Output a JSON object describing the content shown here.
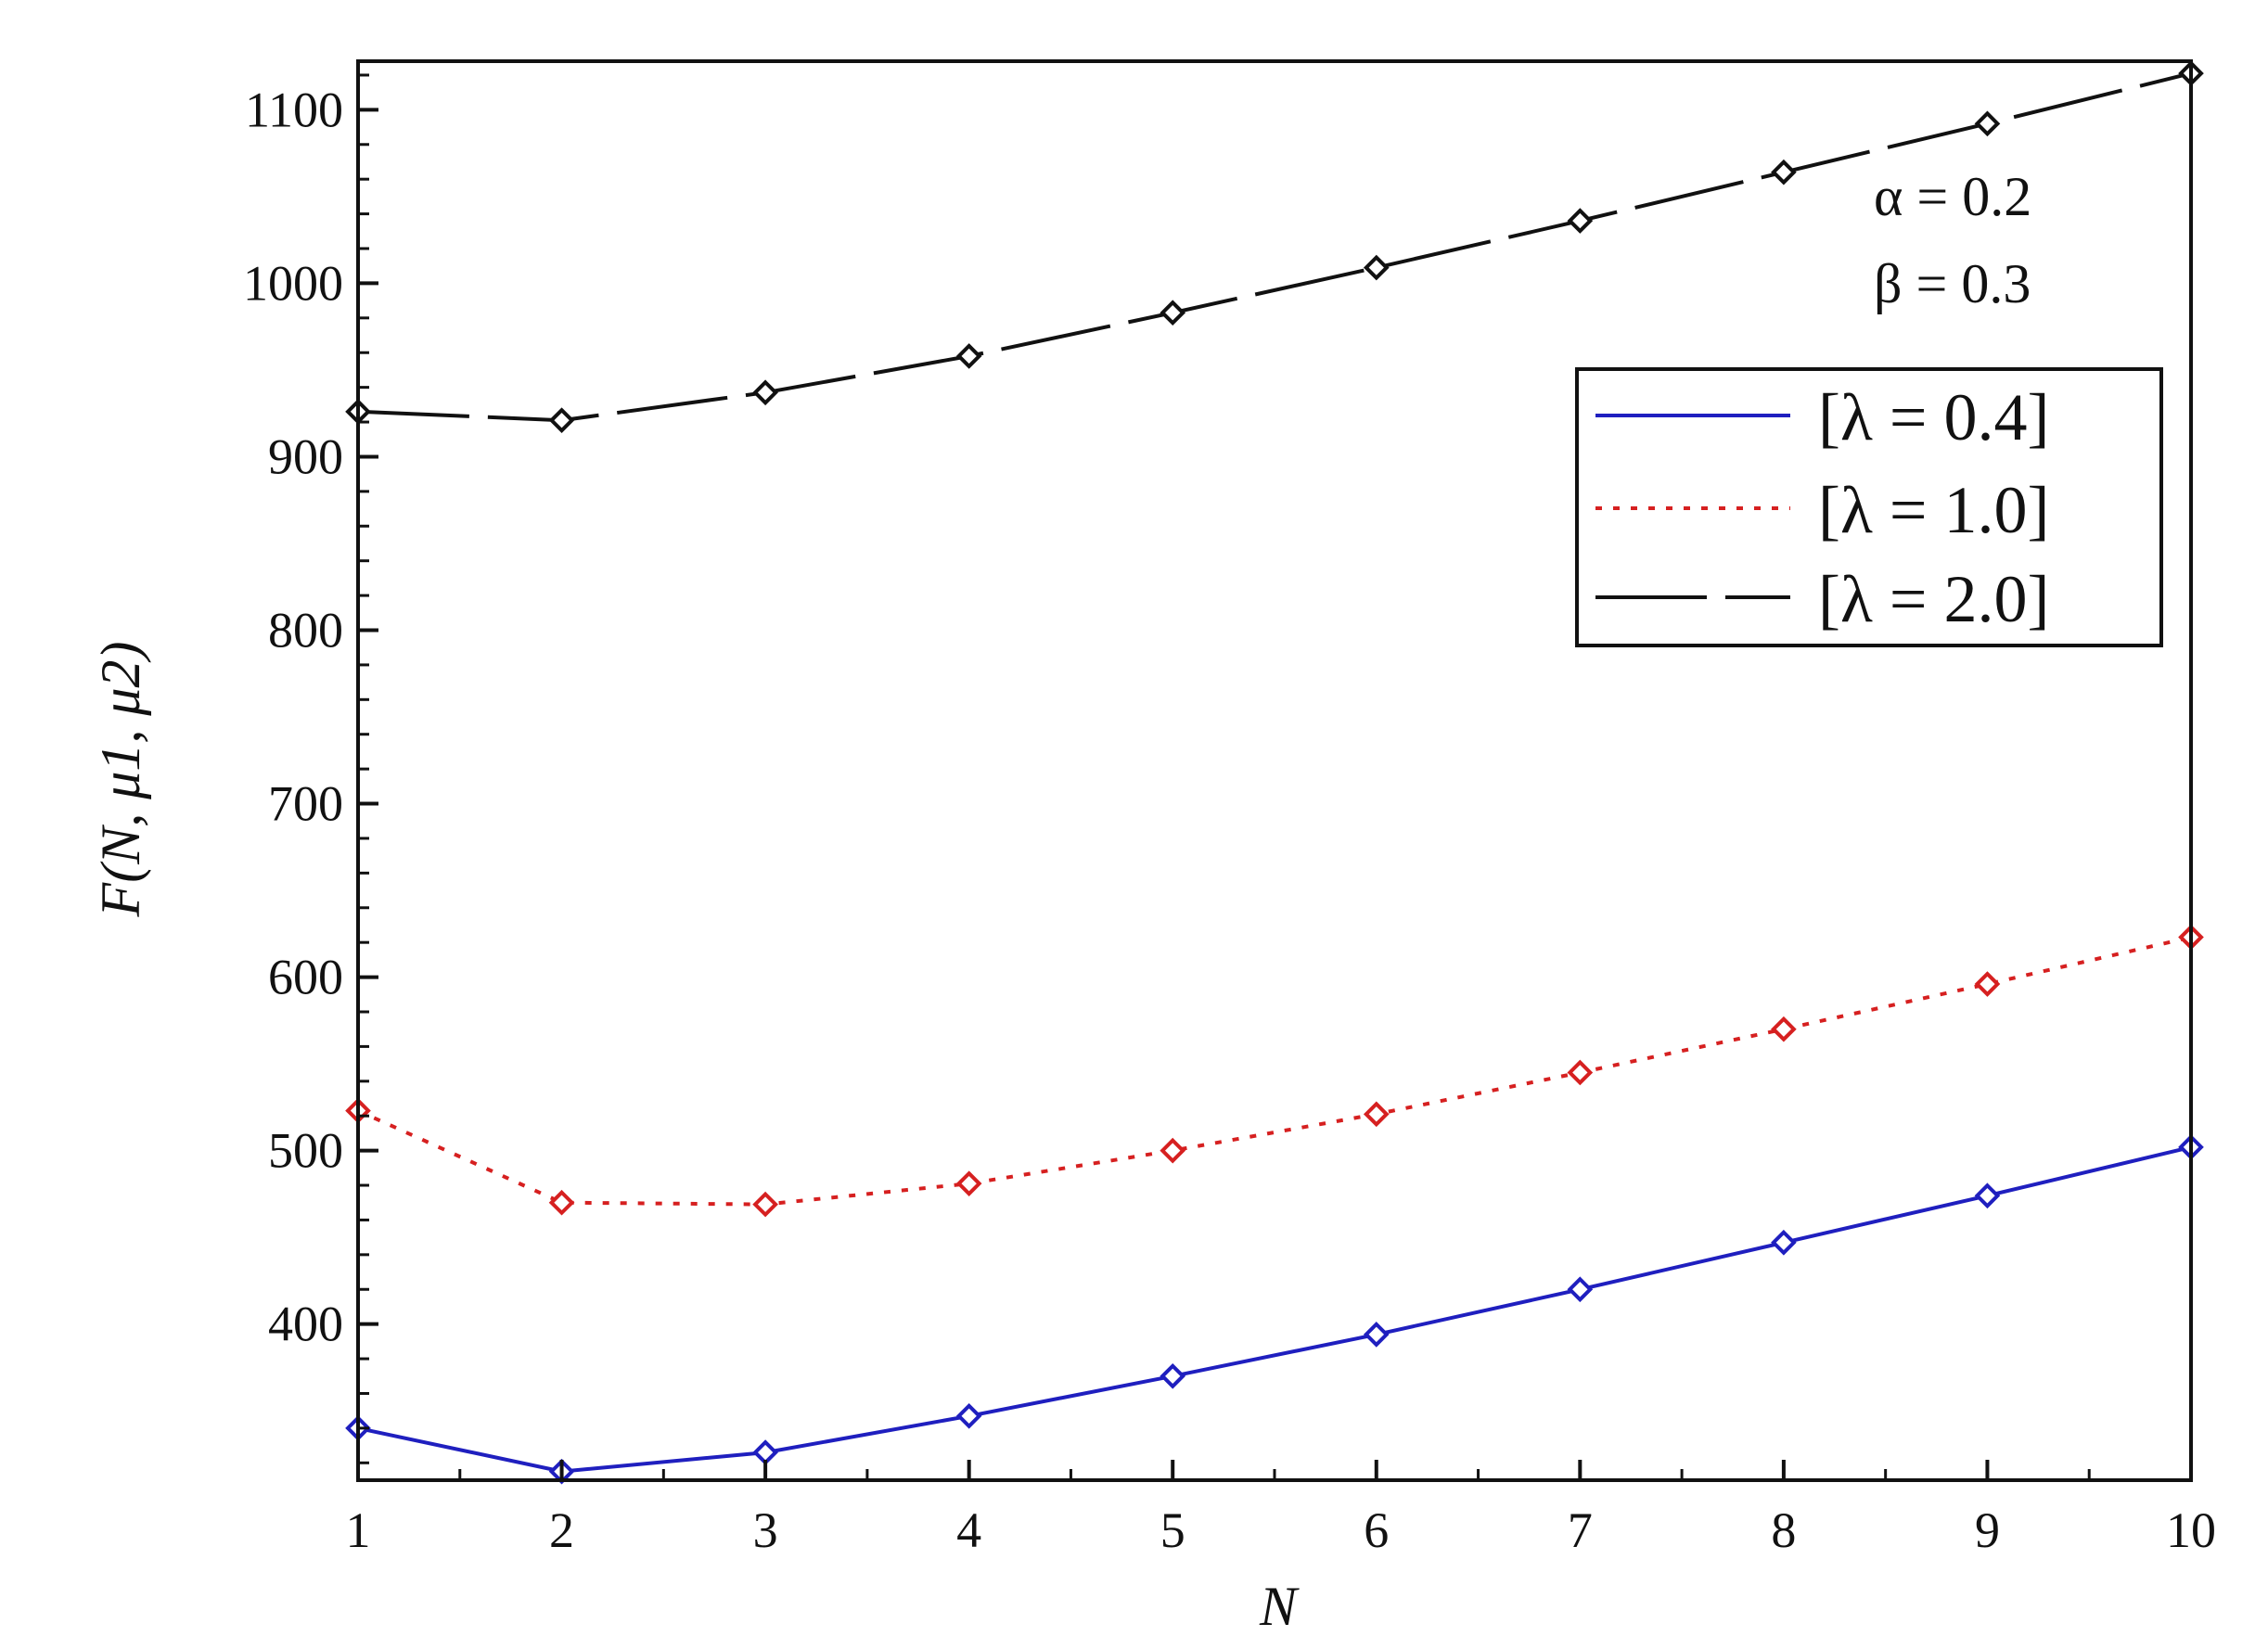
{
  "chart_data": {
    "type": "line",
    "xlabel": "N",
    "ylabel": "F(N, μ1, μ2)",
    "x": [
      1,
      2,
      3,
      4,
      5,
      6,
      7,
      8,
      9,
      10
    ],
    "xlim": [
      1,
      10
    ],
    "ylim": [
      310,
      1128
    ],
    "xticks": [
      1,
      2,
      3,
      4,
      5,
      6,
      7,
      8,
      9,
      10
    ],
    "yticks": [
      400,
      500,
      600,
      700,
      800,
      900,
      1000,
      1100
    ],
    "grid": false,
    "legend_position": "upper-right",
    "annotations": [
      "α = 0.2",
      "β = 0.3"
    ],
    "series": [
      {
        "name": "[λ = 0.4]",
        "color": "#1f1fbf",
        "style": "solid",
        "marker": "diamond",
        "values": [
          340,
          315,
          326,
          347,
          370,
          394,
          420,
          447,
          474,
          502
        ]
      },
      {
        "name": "[λ = 1.0]",
        "color": "#d62020",
        "style": "dotted",
        "marker": "diamond",
        "values": [
          523,
          470,
          469,
          481,
          500,
          521,
          545,
          570,
          596,
          623
        ]
      },
      {
        "name": "[λ = 2.0]",
        "color": "#111111",
        "style": "dashed",
        "marker": "diamond",
        "values": [
          926,
          921,
          937,
          958,
          983,
          1009,
          1036,
          1064,
          1092,
          1121
        ]
      }
    ]
  }
}
